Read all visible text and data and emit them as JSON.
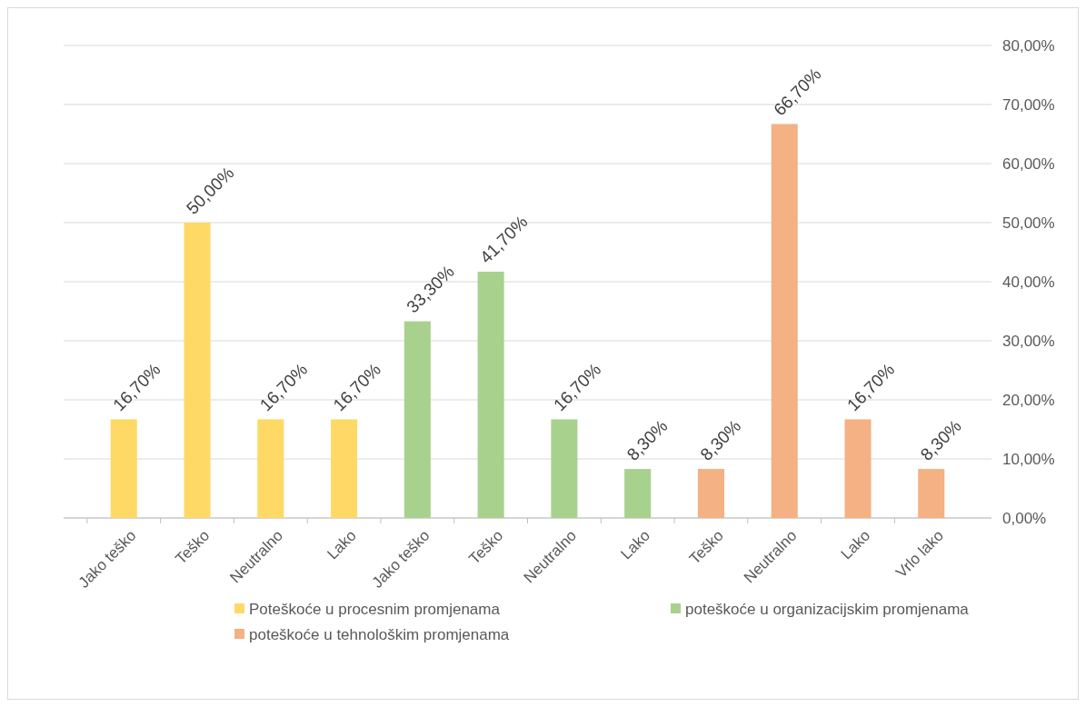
{
  "chart_data": {
    "type": "bar",
    "categories": [
      "Jako teško",
      "Teško",
      "Neutralno",
      "Lako",
      "Jako teško",
      "Teško",
      "Neutralno",
      "Lako",
      "Teško",
      "Neutralno",
      "Lako",
      "Vrlo lako"
    ],
    "series": [
      {
        "name": "Poteškoće u procesnim promjenama",
        "color": "#ffd966",
        "values": [
          16.7,
          50,
          16.7,
          16.7,
          null,
          null,
          null,
          null,
          null,
          null,
          null,
          null
        ],
        "value_labels": [
          "16,70%",
          "50,00%",
          "16,70%",
          "16,70%",
          null,
          null,
          null,
          null,
          null,
          null,
          null,
          null
        ]
      },
      {
        "name": "poteškoće u organizacijskim promjenama",
        "color": "#a9d18e",
        "values": [
          null,
          null,
          null,
          null,
          33.3,
          41.7,
          16.7,
          8.3,
          null,
          null,
          null,
          null
        ],
        "value_labels": [
          null,
          null,
          null,
          null,
          "33,30%",
          "41,70%",
          "16,70%",
          "8,30%",
          null,
          null,
          null,
          null
        ]
      },
      {
        "name": "poteškoće u tehnološkim promjenama",
        "color": "#f4b183",
        "values": [
          null,
          null,
          null,
          null,
          null,
          null,
          null,
          null,
          8.3,
          66.7,
          16.7,
          8.3
        ],
        "value_labels": [
          null,
          null,
          null,
          null,
          null,
          null,
          null,
          null,
          "8,30%",
          "66,70%",
          "16,70%",
          "8,30%"
        ]
      }
    ],
    "ylim": [
      0,
      80
    ],
    "yticks": [
      {
        "value": 0,
        "label": "0,00%"
      },
      {
        "value": 10,
        "label": "10,00%"
      },
      {
        "value": 20,
        "label": "20,00%"
      },
      {
        "value": 30,
        "label": "30,00%"
      },
      {
        "value": 40,
        "label": "40,00%"
      },
      {
        "value": 50,
        "label": "50,00%"
      },
      {
        "value": 60,
        "label": "60,00%"
      },
      {
        "value": 70,
        "label": "70,00%"
      },
      {
        "value": 80,
        "label": "80,00%"
      }
    ],
    "grid": "y",
    "legend": "bottom"
  }
}
